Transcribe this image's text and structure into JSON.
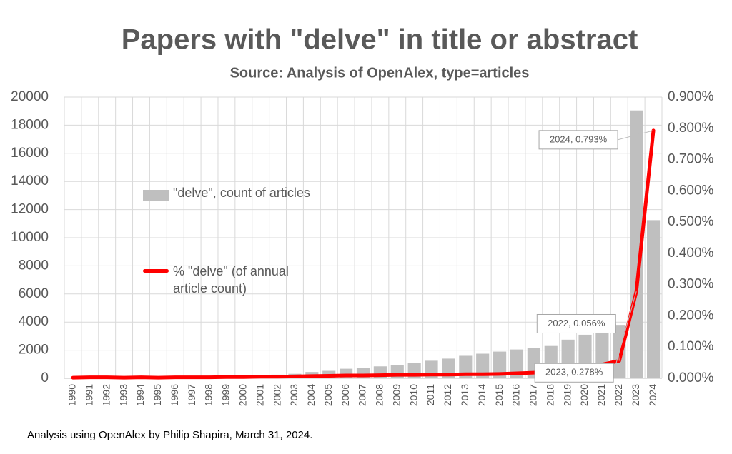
{
  "chart_data": {
    "type": "bar",
    "title": "Papers with \"delve\" in title or abstract",
    "subtitle": "Source: Analysis of OpenAlex, type=articles",
    "footnote": "Analysis using OpenAlex by Philip Shapira, March 31, 2024.",
    "categories": [
      "1990",
      "1991",
      "1992",
      "1993",
      "1994",
      "1995",
      "1996",
      "1997",
      "1998",
      "1999",
      "2000",
      "2001",
      "2002",
      "2003",
      "2004",
      "2005",
      "2006",
      "2007",
      "2008",
      "2009",
      "2010",
      "2011",
      "2012",
      "2013",
      "2014",
      "2015",
      "2016",
      "2017",
      "2018",
      "2019",
      "2020",
      "2021",
      "2022",
      "2023",
      "2024"
    ],
    "series": [
      {
        "name": "\"delve\", count of articles",
        "color": "#bfbfbf",
        "type": "bar",
        "values": [
          20,
          30,
          40,
          40,
          60,
          70,
          90,
          100,
          120,
          150,
          180,
          220,
          260,
          320,
          450,
          530,
          680,
          760,
          850,
          950,
          1080,
          1250,
          1400,
          1600,
          1750,
          1900,
          2050,
          2150,
          2300,
          2750,
          3100,
          3300,
          3800,
          19050,
          11250
        ]
      },
      {
        "name": "% \"delve\" (of annual article count)",
        "color": "#ff0000",
        "type": "line",
        "axis": "y2",
        "values": [
          0.002,
          0.003,
          0.003,
          0.002,
          0.003,
          0.002,
          0.003,
          0.003,
          0.003,
          0.004,
          0.004,
          0.005,
          0.005,
          0.006,
          0.007,
          0.008,
          0.009,
          0.009,
          0.01,
          0.011,
          0.011,
          0.012,
          0.012,
          0.013,
          0.013,
          0.014,
          0.016,
          0.018,
          0.021,
          0.025,
          0.033,
          0.044,
          0.056,
          0.278,
          0.793
        ],
        "value_labels": [
          null,
          null,
          null,
          null,
          null,
          null,
          null,
          null,
          null,
          null,
          null,
          null,
          null,
          null,
          null,
          null,
          null,
          null,
          null,
          null,
          null,
          null,
          null,
          null,
          null,
          null,
          null,
          null,
          null,
          null,
          null,
          null,
          "2022, 0.056%",
          "2023, 0.278%",
          "2024, 0.793%"
        ]
      }
    ],
    "ylim": [
      0,
      20000
    ],
    "yticks": [
      0,
      2000,
      4000,
      6000,
      8000,
      10000,
      12000,
      14000,
      16000,
      18000,
      20000
    ],
    "y2lim": [
      0,
      0.9
    ],
    "y2ticks": [
      {
        "value": 0,
        "label": "0.000%"
      },
      {
        "value": 0.1,
        "label": "0.100%"
      },
      {
        "value": 0.2,
        "label": "0.200%"
      },
      {
        "value": 0.3,
        "label": "0.300%"
      },
      {
        "value": 0.4,
        "label": "0.400%"
      },
      {
        "value": 0.5,
        "label": "0.500%"
      },
      {
        "value": 0.6,
        "label": "0.600%"
      },
      {
        "value": 0.7,
        "label": "0.700%"
      },
      {
        "value": 0.8,
        "label": "0.800%"
      },
      {
        "value": 0.9,
        "label": "0.900%"
      }
    ],
    "grid": true,
    "legend_position": "left"
  }
}
